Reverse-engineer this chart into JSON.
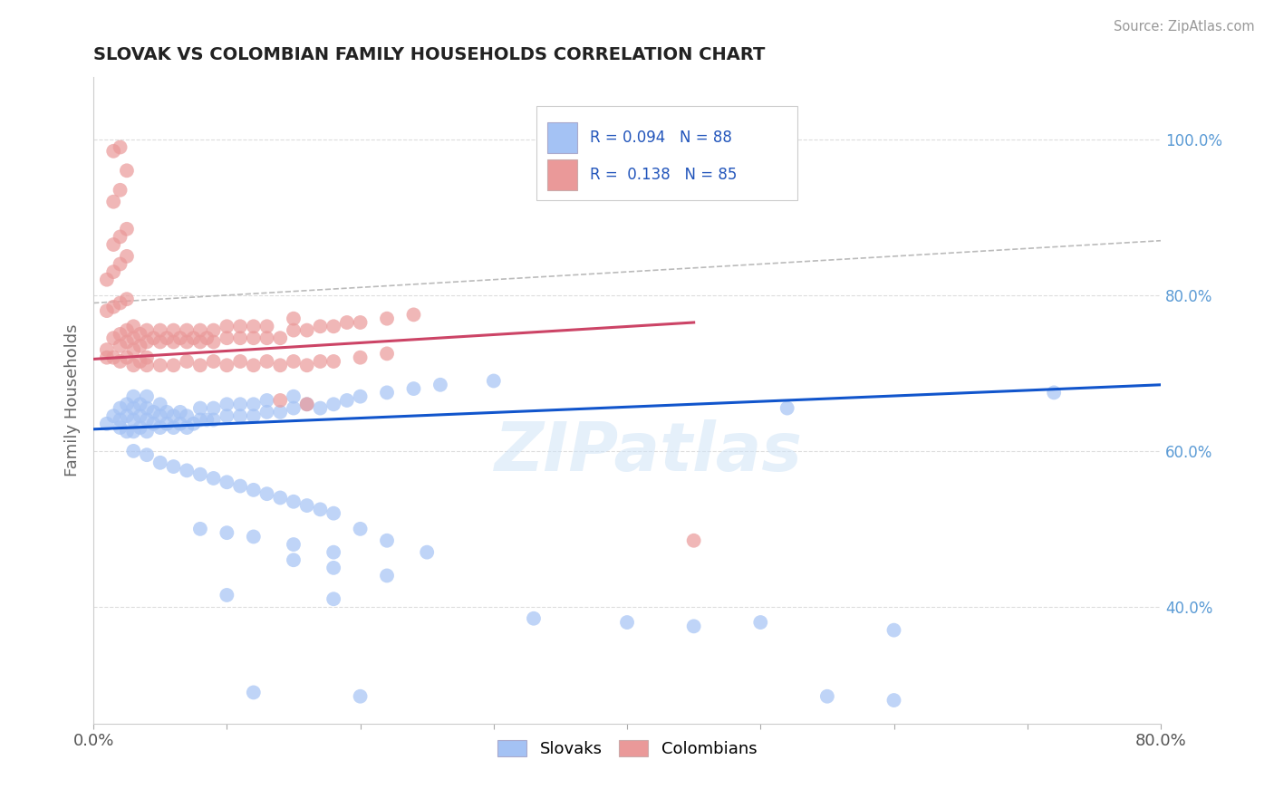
{
  "title": "SLOVAK VS COLOMBIAN FAMILY HOUSEHOLDS CORRELATION CHART",
  "source": "Source: ZipAtlas.com",
  "ylabel": "Family Households",
  "xlim": [
    0.0,
    0.8
  ],
  "ylim": [
    0.25,
    1.08
  ],
  "slovak_color": "#a4c2f4",
  "colombian_color": "#ea9999",
  "slovak_line_color": "#1155cc",
  "colombian_line_color": "#cc4466",
  "trendline_color": "#bbbbbb",
  "watermark": "ZIPatlas",
  "slovak_points": [
    [
      0.01,
      0.635
    ],
    [
      0.015,
      0.645
    ],
    [
      0.02,
      0.63
    ],
    [
      0.02,
      0.655
    ],
    [
      0.02,
      0.64
    ],
    [
      0.025,
      0.625
    ],
    [
      0.025,
      0.645
    ],
    [
      0.025,
      0.66
    ],
    [
      0.03,
      0.625
    ],
    [
      0.03,
      0.64
    ],
    [
      0.03,
      0.655
    ],
    [
      0.03,
      0.67
    ],
    [
      0.035,
      0.63
    ],
    [
      0.035,
      0.645
    ],
    [
      0.035,
      0.66
    ],
    [
      0.04,
      0.625
    ],
    [
      0.04,
      0.64
    ],
    [
      0.04,
      0.655
    ],
    [
      0.04,
      0.67
    ],
    [
      0.045,
      0.635
    ],
    [
      0.045,
      0.65
    ],
    [
      0.05,
      0.63
    ],
    [
      0.05,
      0.645
    ],
    [
      0.05,
      0.66
    ],
    [
      0.055,
      0.635
    ],
    [
      0.055,
      0.65
    ],
    [
      0.06,
      0.63
    ],
    [
      0.06,
      0.645
    ],
    [
      0.065,
      0.635
    ],
    [
      0.065,
      0.65
    ],
    [
      0.07,
      0.63
    ],
    [
      0.07,
      0.645
    ],
    [
      0.075,
      0.635
    ],
    [
      0.08,
      0.64
    ],
    [
      0.08,
      0.655
    ],
    [
      0.085,
      0.64
    ],
    [
      0.09,
      0.64
    ],
    [
      0.09,
      0.655
    ],
    [
      0.1,
      0.645
    ],
    [
      0.1,
      0.66
    ],
    [
      0.11,
      0.645
    ],
    [
      0.11,
      0.66
    ],
    [
      0.12,
      0.645
    ],
    [
      0.12,
      0.66
    ],
    [
      0.13,
      0.65
    ],
    [
      0.13,
      0.665
    ],
    [
      0.14,
      0.65
    ],
    [
      0.15,
      0.655
    ],
    [
      0.15,
      0.67
    ],
    [
      0.16,
      0.66
    ],
    [
      0.17,
      0.655
    ],
    [
      0.18,
      0.66
    ],
    [
      0.19,
      0.665
    ],
    [
      0.2,
      0.67
    ],
    [
      0.22,
      0.675
    ],
    [
      0.24,
      0.68
    ],
    [
      0.26,
      0.685
    ],
    [
      0.3,
      0.69
    ],
    [
      0.03,
      0.6
    ],
    [
      0.04,
      0.595
    ],
    [
      0.05,
      0.585
    ],
    [
      0.06,
      0.58
    ],
    [
      0.07,
      0.575
    ],
    [
      0.08,
      0.57
    ],
    [
      0.09,
      0.565
    ],
    [
      0.1,
      0.56
    ],
    [
      0.11,
      0.555
    ],
    [
      0.12,
      0.55
    ],
    [
      0.13,
      0.545
    ],
    [
      0.14,
      0.54
    ],
    [
      0.15,
      0.535
    ],
    [
      0.16,
      0.53
    ],
    [
      0.17,
      0.525
    ],
    [
      0.18,
      0.52
    ],
    [
      0.2,
      0.5
    ],
    [
      0.22,
      0.485
    ],
    [
      0.25,
      0.47
    ],
    [
      0.08,
      0.5
    ],
    [
      0.1,
      0.495
    ],
    [
      0.12,
      0.49
    ],
    [
      0.15,
      0.48
    ],
    [
      0.18,
      0.47
    ],
    [
      0.15,
      0.46
    ],
    [
      0.18,
      0.45
    ],
    [
      0.22,
      0.44
    ],
    [
      0.1,
      0.415
    ],
    [
      0.18,
      0.41
    ],
    [
      0.5,
      0.38
    ],
    [
      0.52,
      0.655
    ],
    [
      0.45,
      0.375
    ],
    [
      0.6,
      0.37
    ],
    [
      0.72,
      0.675
    ],
    [
      0.12,
      0.29
    ],
    [
      0.2,
      0.285
    ],
    [
      0.33,
      0.385
    ],
    [
      0.4,
      0.38
    ],
    [
      0.55,
      0.285
    ],
    [
      0.6,
      0.28
    ]
  ],
  "colombian_points": [
    [
      0.01,
      0.73
    ],
    [
      0.015,
      0.745
    ],
    [
      0.02,
      0.735
    ],
    [
      0.02,
      0.75
    ],
    [
      0.025,
      0.74
    ],
    [
      0.025,
      0.755
    ],
    [
      0.03,
      0.73
    ],
    [
      0.03,
      0.745
    ],
    [
      0.03,
      0.76
    ],
    [
      0.035,
      0.735
    ],
    [
      0.035,
      0.75
    ],
    [
      0.04,
      0.74
    ],
    [
      0.04,
      0.755
    ],
    [
      0.045,
      0.745
    ],
    [
      0.05,
      0.74
    ],
    [
      0.05,
      0.755
    ],
    [
      0.055,
      0.745
    ],
    [
      0.06,
      0.74
    ],
    [
      0.06,
      0.755
    ],
    [
      0.065,
      0.745
    ],
    [
      0.07,
      0.74
    ],
    [
      0.07,
      0.755
    ],
    [
      0.075,
      0.745
    ],
    [
      0.08,
      0.74
    ],
    [
      0.08,
      0.755
    ],
    [
      0.085,
      0.745
    ],
    [
      0.09,
      0.74
    ],
    [
      0.09,
      0.755
    ],
    [
      0.1,
      0.745
    ],
    [
      0.1,
      0.76
    ],
    [
      0.11,
      0.745
    ],
    [
      0.11,
      0.76
    ],
    [
      0.12,
      0.745
    ],
    [
      0.12,
      0.76
    ],
    [
      0.13,
      0.745
    ],
    [
      0.13,
      0.76
    ],
    [
      0.14,
      0.745
    ],
    [
      0.15,
      0.755
    ],
    [
      0.15,
      0.77
    ],
    [
      0.16,
      0.755
    ],
    [
      0.17,
      0.76
    ],
    [
      0.18,
      0.76
    ],
    [
      0.19,
      0.765
    ],
    [
      0.2,
      0.765
    ],
    [
      0.22,
      0.77
    ],
    [
      0.24,
      0.775
    ],
    [
      0.01,
      0.78
    ],
    [
      0.015,
      0.785
    ],
    [
      0.02,
      0.79
    ],
    [
      0.025,
      0.795
    ],
    [
      0.01,
      0.82
    ],
    [
      0.015,
      0.83
    ],
    [
      0.02,
      0.84
    ],
    [
      0.025,
      0.85
    ],
    [
      0.015,
      0.865
    ],
    [
      0.02,
      0.875
    ],
    [
      0.025,
      0.885
    ],
    [
      0.015,
      0.92
    ],
    [
      0.02,
      0.935
    ],
    [
      0.025,
      0.96
    ],
    [
      0.015,
      0.985
    ],
    [
      0.02,
      0.99
    ],
    [
      0.01,
      0.72
    ],
    [
      0.015,
      0.72
    ],
    [
      0.02,
      0.715
    ],
    [
      0.025,
      0.72
    ],
    [
      0.03,
      0.71
    ],
    [
      0.035,
      0.715
    ],
    [
      0.04,
      0.72
    ],
    [
      0.04,
      0.71
    ],
    [
      0.05,
      0.71
    ],
    [
      0.06,
      0.71
    ],
    [
      0.07,
      0.715
    ],
    [
      0.08,
      0.71
    ],
    [
      0.09,
      0.715
    ],
    [
      0.1,
      0.71
    ],
    [
      0.11,
      0.715
    ],
    [
      0.12,
      0.71
    ],
    [
      0.13,
      0.715
    ],
    [
      0.14,
      0.71
    ],
    [
      0.15,
      0.715
    ],
    [
      0.16,
      0.71
    ],
    [
      0.17,
      0.715
    ],
    [
      0.18,
      0.715
    ],
    [
      0.2,
      0.72
    ],
    [
      0.22,
      0.725
    ],
    [
      0.45,
      0.485
    ],
    [
      0.14,
      0.665
    ],
    [
      0.16,
      0.66
    ]
  ]
}
